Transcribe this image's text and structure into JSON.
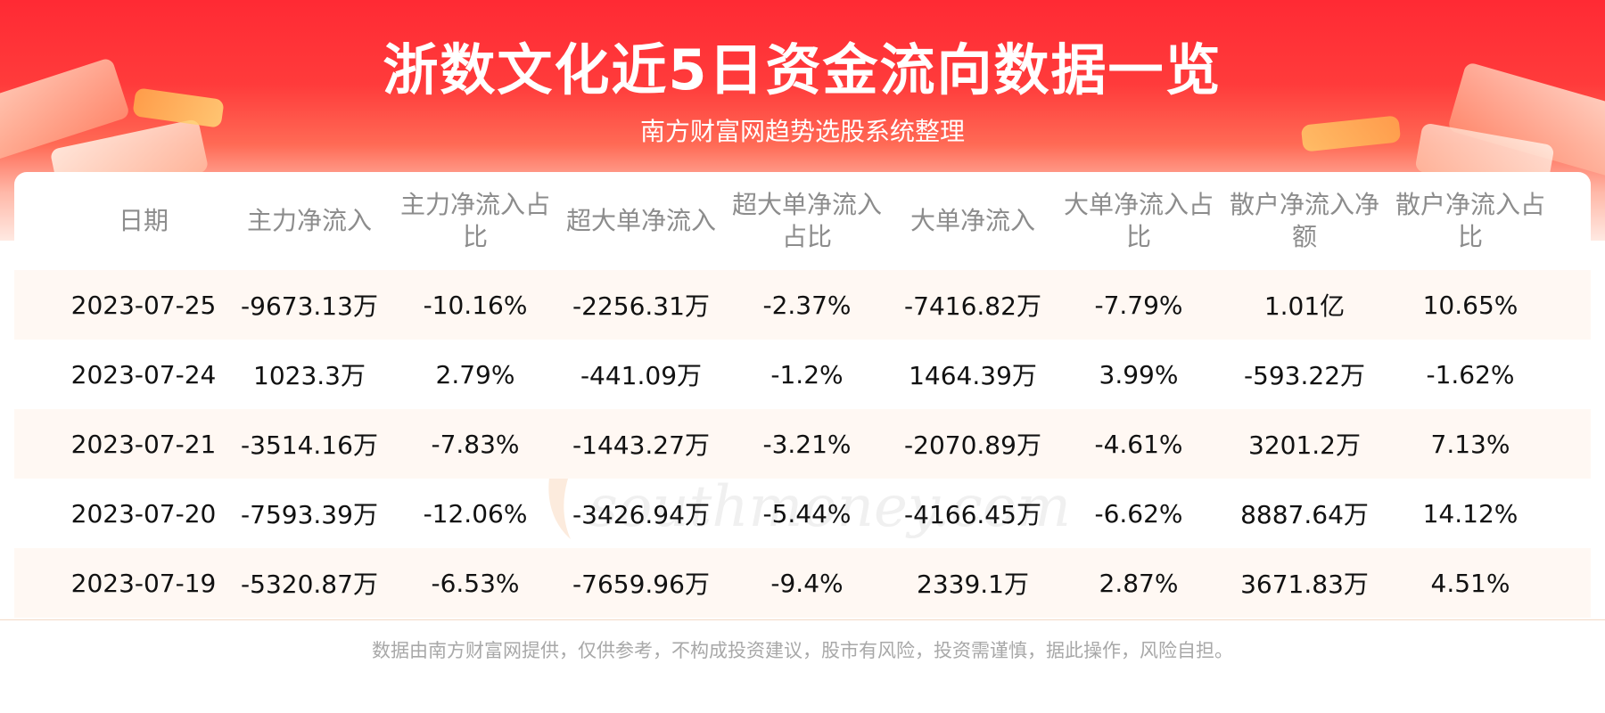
{
  "header": {
    "title": "浙数文化近5日资金流向数据一览",
    "subtitle": "南方财富网趋势选股系统整理"
  },
  "table": {
    "columns": [
      "日期",
      "主力净流入",
      "主力净流入占比",
      "超大单净流入",
      "超大单净流入占比",
      "大单净流入",
      "大单净流入占比",
      "散户净流入净额",
      "散户净流入占比"
    ],
    "rows": [
      [
        "2023-07-25",
        "-9673.13万",
        "-10.16%",
        "-2256.31万",
        "-2.37%",
        "-7416.82万",
        "-7.79%",
        "1.01亿",
        "10.65%"
      ],
      [
        "2023-07-24",
        "1023.3万",
        "2.79%",
        "-441.09万",
        "-1.2%",
        "1464.39万",
        "3.99%",
        "-593.22万",
        "-1.62%"
      ],
      [
        "2023-07-21",
        "-3514.16万",
        "-7.83%",
        "-1443.27万",
        "-3.21%",
        "-2070.89万",
        "-4.61%",
        "3201.2万",
        "7.13%"
      ],
      [
        "2023-07-20",
        "-7593.39万",
        "-12.06%",
        "-3426.94万",
        "-5.44%",
        "-4166.45万",
        "-6.62%",
        "8887.64万",
        "14.12%"
      ],
      [
        "2023-07-19",
        "-5320.87万",
        "-6.53%",
        "-7659.96万",
        "-9.4%",
        "2339.1万",
        "2.87%",
        "3671.83万",
        "4.51%"
      ]
    ]
  },
  "watermark": {
    "cn": "南方财富网",
    "en": "southmoney.com"
  },
  "footer": {
    "disclaimer": "数据由南方财富网提供，仅供参考，不构成投资建议，股市有风险，投资需谨慎，据此操作，风险自担。"
  },
  "colors": {
    "banner_red": "#ff2a34",
    "header_text": "#8c8c8c",
    "row_alt": "#fff8f3"
  }
}
